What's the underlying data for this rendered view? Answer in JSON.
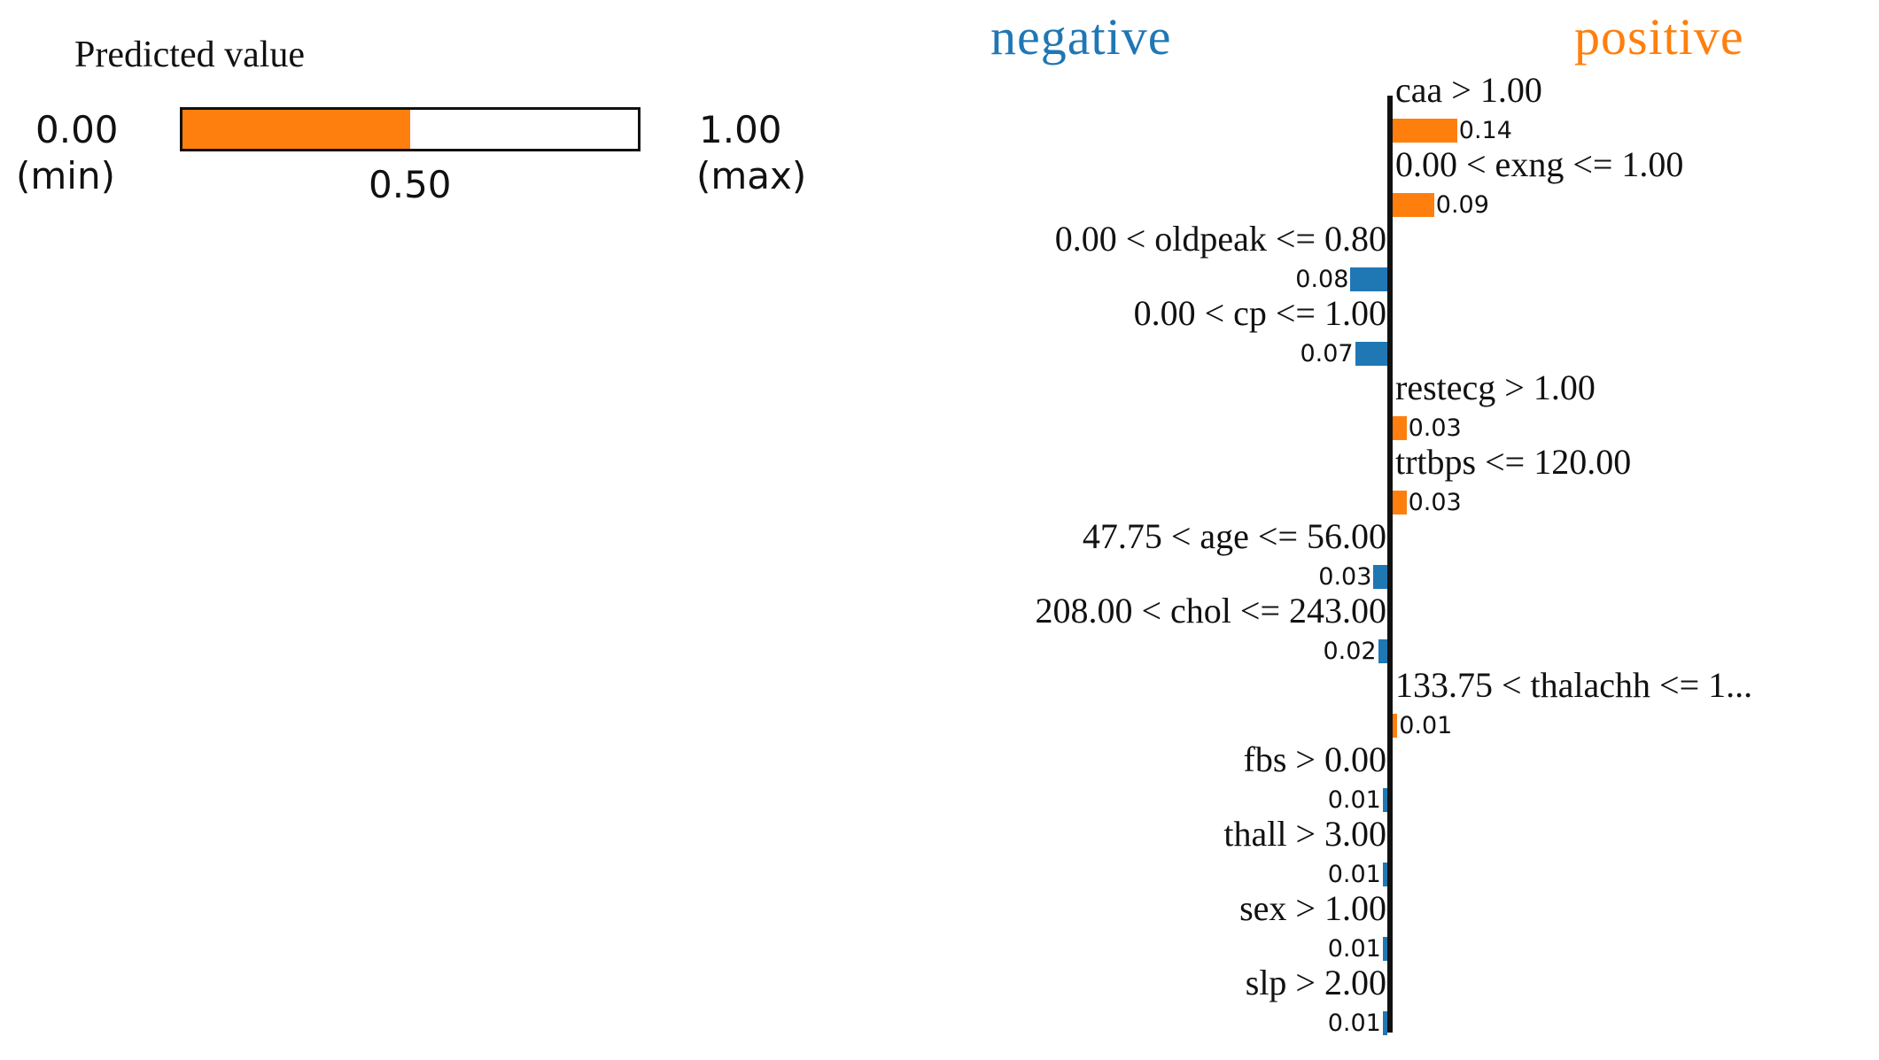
{
  "predicted_value": {
    "title": "Predicted value",
    "min_value": "0.00",
    "min_note": "(min)",
    "max_value": "1.00",
    "max_note": "(max)",
    "value_label": "0.50",
    "value": 0.5,
    "fill_color": "#ff7f0e"
  },
  "chart_data": {
    "type": "bar",
    "orientation": "horizontal",
    "negative_label": "negative",
    "positive_label": "positive",
    "colors": {
      "negative": "#1f77b4",
      "positive": "#ff7f0e"
    },
    "features": [
      {
        "label": "caa > 1.00",
        "value": 0.14,
        "value_label": "0.14",
        "direction": "positive"
      },
      {
        "label": "0.00 < exng <= 1.00",
        "value": 0.09,
        "value_label": "0.09",
        "direction": "positive"
      },
      {
        "label": "0.00 < oldpeak <= 0.80",
        "value": 0.08,
        "value_label": "0.08",
        "direction": "negative"
      },
      {
        "label": "0.00 < cp <= 1.00",
        "value": 0.07,
        "value_label": "0.07",
        "direction": "negative"
      },
      {
        "label": "restecg > 1.00",
        "value": 0.03,
        "value_label": "0.03",
        "direction": "positive"
      },
      {
        "label": "trtbps <= 120.00",
        "value": 0.03,
        "value_label": "0.03",
        "direction": "positive"
      },
      {
        "label": "47.75 < age <= 56.00",
        "value": 0.03,
        "value_label": "0.03",
        "direction": "negative"
      },
      {
        "label": "208.00 < chol <= 243.00",
        "value": 0.02,
        "value_label": "0.02",
        "direction": "negative"
      },
      {
        "label": "133.75 < thalachh <= 1...",
        "value": 0.01,
        "value_label": "0.01",
        "direction": "positive"
      },
      {
        "label": "fbs > 0.00",
        "value": 0.01,
        "value_label": "0.01",
        "direction": "negative"
      },
      {
        "label": "thall > 3.00",
        "value": 0.01,
        "value_label": "0.01",
        "direction": "negative"
      },
      {
        "label": "sex > 1.00",
        "value": 0.01,
        "value_label": "0.01",
        "direction": "negative"
      },
      {
        "label": "slp > 2.00",
        "value": 0.01,
        "value_label": "0.01",
        "direction": "negative"
      }
    ]
  }
}
